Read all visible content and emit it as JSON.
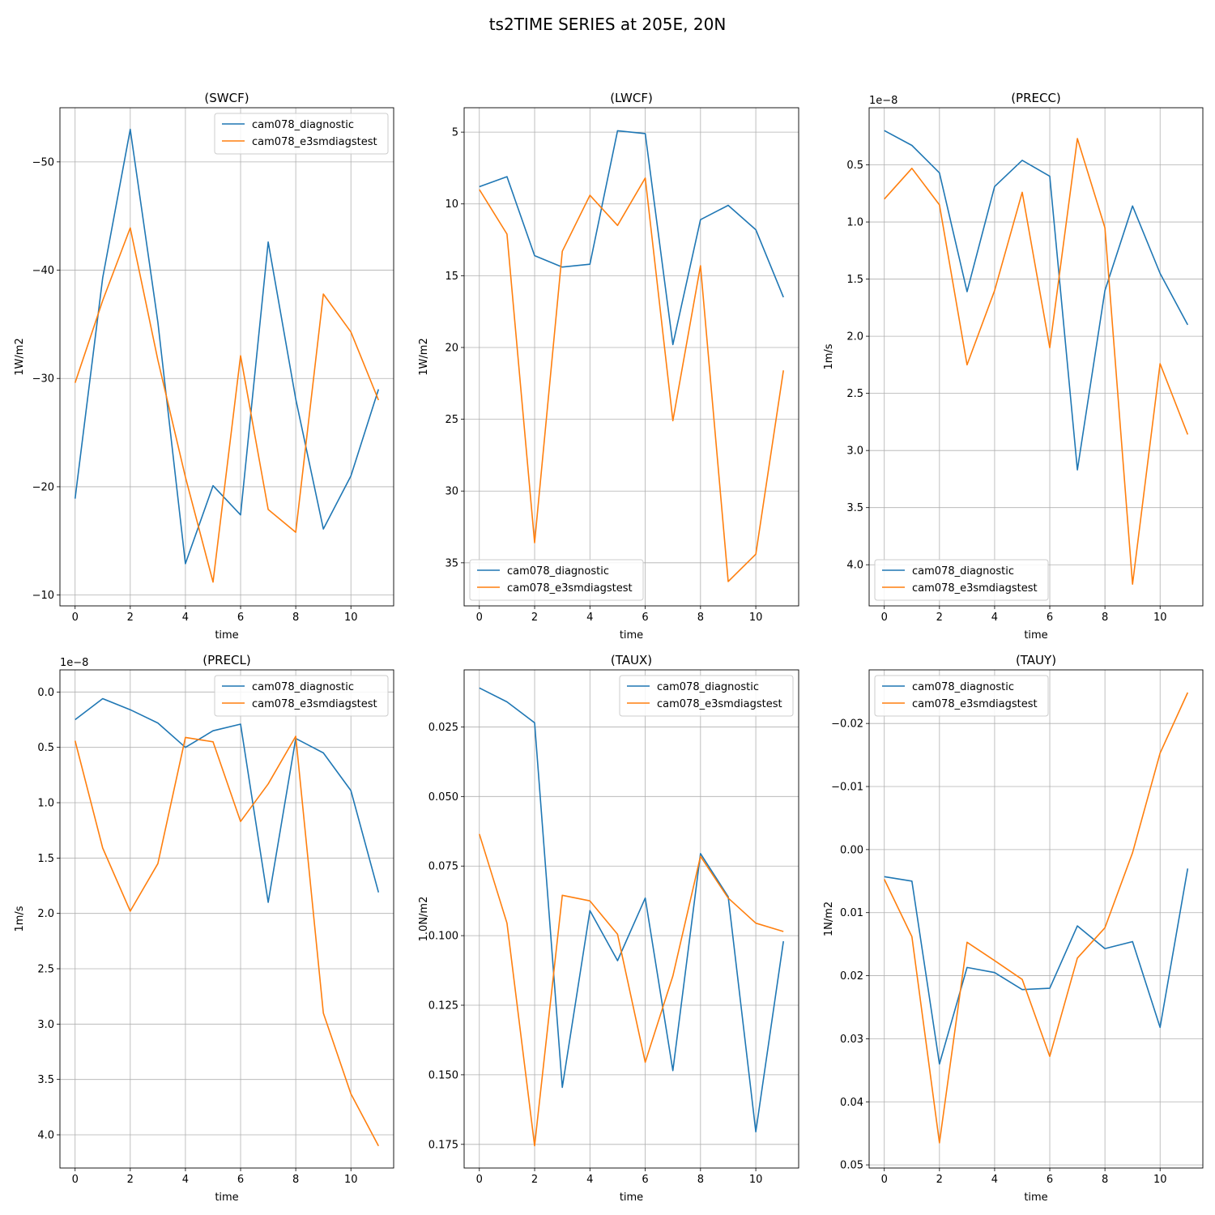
{
  "figure": {
    "title": "ts2TIME SERIES at 205E, 20N"
  },
  "colors": {
    "series0": "#1f77b4",
    "series1": "#ff7f0e",
    "grid": "#b0b0b0"
  },
  "chart_data": [
    {
      "type": "line",
      "title": "(SWCF)",
      "xlabel": "time",
      "ylabel": "1W/m2",
      "xlim": [
        -0.55,
        11.55
      ],
      "ylim": [
        -9.0,
        -55.0
      ],
      "y_inverted": true,
      "x_ticks": [
        "0",
        "2",
        "4",
        "6",
        "8",
        "10"
      ],
      "y_ticks": [
        {
          "value": -50,
          "label": "−50"
        },
        {
          "value": -40,
          "label": "−40"
        },
        {
          "value": -30,
          "label": "−30"
        },
        {
          "value": -20,
          "label": "−20"
        },
        {
          "value": -10,
          "label": "−10"
        }
      ],
      "offset_text": "",
      "legend_loc": "upper right",
      "grid": true,
      "x": [
        0,
        1,
        2,
        3,
        4,
        5,
        6,
        7,
        8,
        9,
        10,
        11
      ],
      "series": [
        {
          "name": "cam078_diagnostic",
          "values": [
            -18.9,
            -39.3,
            -53.0,
            -35.2,
            -12.9,
            -20.1,
            -17.4,
            -42.6,
            -28.1,
            -16.1,
            -21.0,
            -29.0
          ]
        },
        {
          "name": "cam078_e3smdiagstest",
          "values": [
            -29.6,
            -37.2,
            -43.9,
            -31.7,
            -20.9,
            -11.2,
            -32.1,
            -17.9,
            -15.8,
            -37.8,
            -34.3,
            -28.0
          ]
        }
      ]
    },
    {
      "type": "line",
      "title": "(LWCF)",
      "xlabel": "time",
      "ylabel": "1W/m2",
      "xlim": [
        -0.55,
        11.55
      ],
      "ylim": [
        38.0,
        3.3
      ],
      "y_inverted": true,
      "x_ticks": [
        "0",
        "2",
        "4",
        "6",
        "8",
        "10"
      ],
      "y_ticks": [
        {
          "value": 5,
          "label": "5"
        },
        {
          "value": 10,
          "label": "10"
        },
        {
          "value": 15,
          "label": "15"
        },
        {
          "value": 20,
          "label": "20"
        },
        {
          "value": 25,
          "label": "25"
        },
        {
          "value": 30,
          "label": "30"
        },
        {
          "value": 35,
          "label": "35"
        }
      ],
      "offset_text": "",
      "legend_loc": "lower left",
      "grid": true,
      "x": [
        0,
        1,
        2,
        3,
        4,
        5,
        6,
        7,
        8,
        9,
        10,
        11
      ],
      "series": [
        {
          "name": "cam078_diagnostic",
          "values": [
            8.8,
            8.1,
            13.6,
            14.4,
            14.2,
            4.9,
            5.1,
            19.8,
            11.1,
            10.1,
            11.8,
            16.5
          ]
        },
        {
          "name": "cam078_e3smdiagstest",
          "values": [
            9.0,
            12.1,
            33.6,
            13.3,
            9.4,
            11.5,
            8.2,
            25.1,
            14.3,
            36.3,
            34.4,
            21.6
          ]
        }
      ]
    },
    {
      "type": "line",
      "title": "(PRECC)",
      "xlabel": "time",
      "ylabel": "1m/s",
      "xlim": [
        -0.55,
        11.55
      ],
      "ylim": [
        4.36,
        0.0
      ],
      "y_inverted": true,
      "x_ticks": [
        "0",
        "2",
        "4",
        "6",
        "8",
        "10"
      ],
      "y_ticks": [
        {
          "value": 0.5,
          "label": "0.5"
        },
        {
          "value": 1.0,
          "label": "1.0"
        },
        {
          "value": 1.5,
          "label": "1.5"
        },
        {
          "value": 2.0,
          "label": "2.0"
        },
        {
          "value": 2.5,
          "label": "2.5"
        },
        {
          "value": 3.0,
          "label": "3.0"
        },
        {
          "value": 3.5,
          "label": "3.5"
        },
        {
          "value": 4.0,
          "label": "4.0"
        }
      ],
      "offset_text": "1e−8",
      "legend_loc": "lower left",
      "grid": true,
      "x": [
        0,
        1,
        2,
        3,
        4,
        5,
        6,
        7,
        8,
        9,
        10,
        11
      ],
      "series": [
        {
          "name": "cam078_diagnostic",
          "values": [
            0.2,
            0.33,
            0.57,
            1.61,
            0.69,
            0.46,
            0.6,
            3.17,
            1.6,
            0.86,
            1.45,
            1.9
          ]
        },
        {
          "name": "cam078_e3smdiagstest",
          "values": [
            0.8,
            0.53,
            0.85,
            2.25,
            1.6,
            0.74,
            2.1,
            0.27,
            1.05,
            4.17,
            2.24,
            2.86
          ]
        }
      ]
    },
    {
      "type": "line",
      "title": "(PRECL)",
      "xlabel": "time",
      "ylabel": "1m/s",
      "xlim": [
        -0.55,
        11.55
      ],
      "ylim": [
        4.3,
        -0.2
      ],
      "y_inverted": true,
      "x_ticks": [
        "0",
        "2",
        "4",
        "6",
        "8",
        "10"
      ],
      "y_ticks": [
        {
          "value": 0.0,
          "label": "0.0"
        },
        {
          "value": 0.5,
          "label": "0.5"
        },
        {
          "value": 1.0,
          "label": "1.0"
        },
        {
          "value": 1.5,
          "label": "1.5"
        },
        {
          "value": 2.0,
          "label": "2.0"
        },
        {
          "value": 2.5,
          "label": "2.5"
        },
        {
          "value": 3.0,
          "label": "3.0"
        },
        {
          "value": 3.5,
          "label": "3.5"
        },
        {
          "value": 4.0,
          "label": "4.0"
        }
      ],
      "offset_text": "1e−8",
      "legend_loc": "upper right",
      "grid": true,
      "x": [
        0,
        1,
        2,
        3,
        4,
        5,
        6,
        7,
        8,
        9,
        10,
        11
      ],
      "series": [
        {
          "name": "cam078_diagnostic",
          "values": [
            0.25,
            0.06,
            0.16,
            0.28,
            0.5,
            0.35,
            0.29,
            1.9,
            0.42,
            0.55,
            0.89,
            1.81
          ]
        },
        {
          "name": "cam078_e3smdiagstest",
          "values": [
            0.44,
            1.41,
            1.98,
            1.55,
            0.41,
            0.45,
            1.17,
            0.83,
            0.4,
            2.9,
            3.63,
            4.1
          ]
        }
      ]
    },
    {
      "type": "line",
      "title": "(TAUX)",
      "xlabel": "time",
      "ylabel": "1.0N/m2",
      "xlim": [
        -0.55,
        11.55
      ],
      "ylim": [
        0.1835,
        0.0045
      ],
      "y_inverted": true,
      "x_ticks": [
        "0",
        "2",
        "4",
        "6",
        "8",
        "10"
      ],
      "y_ticks": [
        {
          "value": 0.025,
          "label": "0.025"
        },
        {
          "value": 0.05,
          "label": "0.050"
        },
        {
          "value": 0.075,
          "label": "0.075"
        },
        {
          "value": 0.1,
          "label": "0.100"
        },
        {
          "value": 0.125,
          "label": "0.125"
        },
        {
          "value": 0.15,
          "label": "0.150"
        },
        {
          "value": 0.175,
          "label": "0.175"
        }
      ],
      "offset_text": "",
      "legend_loc": "upper right",
      "grid": true,
      "x": [
        0,
        1,
        2,
        3,
        4,
        5,
        6,
        7,
        8,
        9,
        10,
        11
      ],
      "series": [
        {
          "name": "cam078_diagnostic",
          "values": [
            0.011,
            0.016,
            0.0235,
            0.1545,
            0.091,
            0.109,
            0.0865,
            0.1485,
            0.0705,
            0.086,
            0.1705,
            0.102
          ]
        },
        {
          "name": "cam078_e3smdiagstest",
          "values": [
            0.0635,
            0.0955,
            0.1755,
            0.0855,
            0.0875,
            0.0995,
            0.1455,
            0.1145,
            0.0715,
            0.0865,
            0.0955,
            0.0985
          ]
        }
      ]
    },
    {
      "type": "line",
      "title": "(TAUY)",
      "xlabel": "time",
      "ylabel": "1N/m2",
      "xlim": [
        -0.55,
        11.55
      ],
      "ylim": [
        0.0505,
        -0.0285
      ],
      "y_inverted": true,
      "x_ticks": [
        "0",
        "2",
        "4",
        "6",
        "8",
        "10"
      ],
      "y_ticks": [
        {
          "value": -0.02,
          "label": "−0.02"
        },
        {
          "value": -0.01,
          "label": "−0.01"
        },
        {
          "value": 0.0,
          "label": "0.00"
        },
        {
          "value": 0.01,
          "label": "0.01"
        },
        {
          "value": 0.02,
          "label": "0.02"
        },
        {
          "value": 0.03,
          "label": "0.03"
        },
        {
          "value": 0.04,
          "label": "0.04"
        },
        {
          "value": 0.05,
          "label": "0.05"
        }
      ],
      "offset_text": "",
      "legend_loc": "upper left",
      "grid": true,
      "x": [
        0,
        1,
        2,
        3,
        4,
        5,
        6,
        7,
        8,
        9,
        10,
        11
      ],
      "series": [
        {
          "name": "cam078_diagnostic",
          "values": [
            0.0043,
            0.005,
            0.034,
            0.0187,
            0.0195,
            0.0222,
            0.022,
            0.0121,
            0.0157,
            0.0146,
            0.0282,
            0.003
          ]
        },
        {
          "name": "cam078_e3smdiagstest",
          "values": [
            0.0047,
            0.0138,
            0.0465,
            0.0147,
            0.0176,
            0.0206,
            0.0328,
            0.0172,
            0.0124,
            0.0005,
            -0.0153,
            -0.0249
          ]
        }
      ]
    }
  ]
}
